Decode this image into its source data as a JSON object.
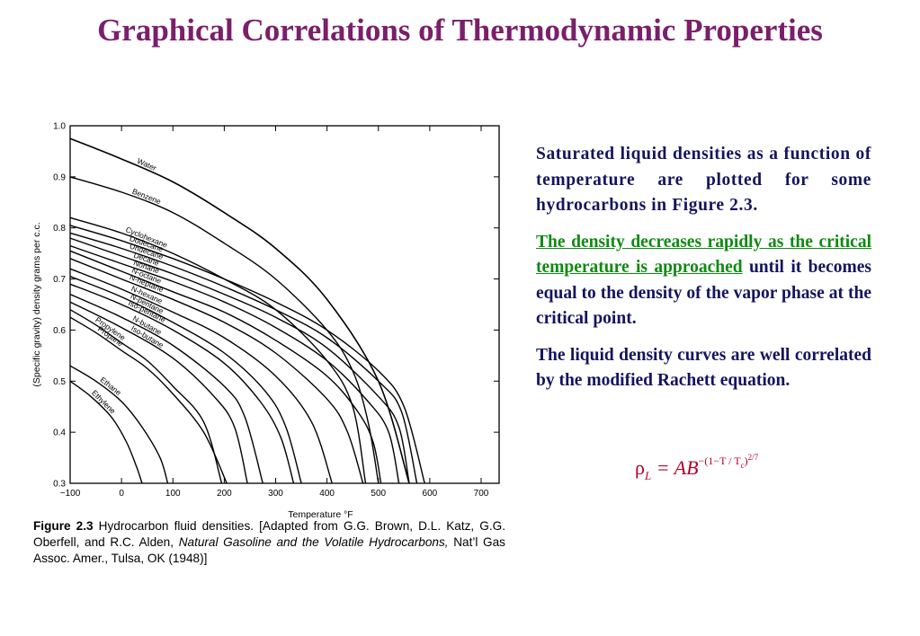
{
  "slide": {
    "title": "Graphical Correlations of Thermodynamic Properties"
  },
  "text_panel": {
    "para1": "Saturated liquid densities as a function of temperature are plotted for some hydrocarbons in Figure 2.3.",
    "para2_green": "The density decreases rapidly as the critical temperature is approached",
    "para2_rest": " until it becomes equal to the density of the vapor phase at the critical point.",
    "para3": "The liquid density curves are well correlated by the modified Rachett equation."
  },
  "formula": {
    "rho": "ρ",
    "rho_sub": "L",
    "equals": " = AB",
    "exp_open": "−(1−T / T",
    "exp_sub": "c",
    "exp_close": ")",
    "exp_power": "2/7"
  },
  "caption": {
    "figure_label": "Figure 2.3",
    "text_before_italic": "  Hydrocarbon fluid densities. [Adapted from G.G. Brown, D.L. Katz, G.G. Oberfell, and R.C. Alden, ",
    "italic_text": "Natural Gasoline and the Volatile Hydrocarbons,",
    "text_after_italic": " Nat’l Gas Assoc. Amer., Tulsa, OK (1948)]"
  },
  "chart_data": {
    "type": "line",
    "xlabel": "Temperature °F",
    "ylabel": "(Specific gravity) density grams per c.c.",
    "xlim": [
      -100,
      735
    ],
    "ylim": [
      0.3,
      1.0
    ],
    "x_ticks": [
      -100,
      0,
      100,
      200,
      300,
      400,
      500,
      600,
      700
    ],
    "x_tick_labels": [
      "−100",
      "0",
      "100",
      "200",
      "300",
      "400",
      "500",
      "600",
      "700"
    ],
    "y_ticks": [
      0.3,
      0.4,
      0.5,
      0.6,
      0.7,
      0.8,
      0.9,
      1.0
    ],
    "y_tick_labels": [
      "0.3",
      "0.4",
      "0.5",
      "0.6",
      "0.7",
      "0.8",
      "0.9",
      "1.0"
    ],
    "grid": false,
    "series": [
      {
        "name": "Water",
        "x": [
          -100,
          0,
          100,
          200,
          300,
          400,
          500,
          560
        ],
        "y": [
          0.975,
          0.935,
          0.89,
          0.83,
          0.76,
          0.66,
          0.5,
          0.3
        ]
      },
      {
        "name": "Benzene",
        "x": [
          -100,
          0,
          100,
          200,
          300,
          400,
          450,
          480,
          500
        ],
        "y": [
          0.9,
          0.87,
          0.83,
          0.77,
          0.7,
          0.6,
          0.52,
          0.42,
          0.3
        ]
      },
      {
        "name": "Cyclohexane",
        "x": [
          -100,
          0,
          100,
          200,
          300,
          400,
          450,
          475
        ],
        "y": [
          0.82,
          0.79,
          0.75,
          0.7,
          0.64,
          0.54,
          0.45,
          0.3
        ]
      },
      {
        "name": "Dodecane",
        "x": [
          -100,
          0,
          100,
          200,
          300,
          400,
          500,
          550,
          590
        ],
        "y": [
          0.805,
          0.775,
          0.74,
          0.7,
          0.655,
          0.6,
          0.52,
          0.45,
          0.3
        ]
      },
      {
        "name": "Undecane",
        "x": [
          -100,
          0,
          100,
          200,
          300,
          400,
          500,
          545,
          575
        ],
        "y": [
          0.79,
          0.76,
          0.725,
          0.685,
          0.64,
          0.585,
          0.5,
          0.44,
          0.3
        ]
      },
      {
        "name": "Decane",
        "x": [
          -100,
          0,
          100,
          200,
          300,
          400,
          500,
          540,
          560
        ],
        "y": [
          0.78,
          0.745,
          0.71,
          0.67,
          0.625,
          0.565,
          0.47,
          0.41,
          0.3
        ]
      },
      {
        "name": "Nonane",
        "x": [
          -100,
          0,
          100,
          200,
          300,
          400,
          480,
          520,
          540
        ],
        "y": [
          0.765,
          0.73,
          0.695,
          0.655,
          0.605,
          0.54,
          0.46,
          0.4,
          0.3
        ]
      },
      {
        "name": "N-octane",
        "x": [
          -100,
          0,
          100,
          200,
          300,
          400,
          460,
          490,
          505
        ],
        "y": [
          0.755,
          0.715,
          0.675,
          0.635,
          0.58,
          0.51,
          0.44,
          0.38,
          0.3
        ]
      },
      {
        "name": "N-heptane",
        "x": [
          -100,
          0,
          100,
          200,
          300,
          400,
          440,
          470
        ],
        "y": [
          0.74,
          0.7,
          0.66,
          0.615,
          0.555,
          0.465,
          0.4,
          0.3
        ]
      },
      {
        "name": "N-hexane",
        "x": [
          -100,
          0,
          100,
          200,
          300,
          370,
          410
        ],
        "y": [
          0.72,
          0.68,
          0.635,
          0.585,
          0.51,
          0.42,
          0.3
        ]
      },
      {
        "name": "N-pentane",
        "x": [
          -100,
          0,
          100,
          200,
          280,
          320,
          350
        ],
        "y": [
          0.705,
          0.665,
          0.615,
          0.555,
          0.48,
          0.41,
          0.3
        ]
      },
      {
        "name": "Iso-pentane",
        "x": [
          -100,
          0,
          100,
          200,
          270,
          310,
          335
        ],
        "y": [
          0.69,
          0.65,
          0.6,
          0.535,
          0.46,
          0.39,
          0.3
        ]
      },
      {
        "name": "N-butane",
        "x": [
          -100,
          0,
          100,
          200,
          240,
          275
        ],
        "y": [
          0.67,
          0.625,
          0.57,
          0.49,
          0.43,
          0.3
        ]
      },
      {
        "name": "Iso-butane",
        "x": [
          -100,
          0,
          100,
          180,
          220,
          245
        ],
        "y": [
          0.655,
          0.605,
          0.545,
          0.47,
          0.41,
          0.3
        ]
      },
      {
        "name": "Propylene",
        "x": [
          -100,
          -50,
          0,
          50,
          100,
          160,
          195
        ],
        "y": [
          0.64,
          0.61,
          0.575,
          0.54,
          0.49,
          0.42,
          0.3
        ]
      },
      {
        "name": "Propane",
        "x": [
          -100,
          -50,
          0,
          50,
          100,
          160,
          205
        ],
        "y": [
          0.625,
          0.595,
          0.56,
          0.525,
          0.475,
          0.4,
          0.3
        ]
      },
      {
        "name": "Ethane",
        "x": [
          -100,
          -50,
          0,
          40,
          75,
          90
        ],
        "y": [
          0.53,
          0.5,
          0.46,
          0.41,
          0.35,
          0.3
        ]
      },
      {
        "name": "Ethylene",
        "x": [
          -100,
          -60,
          -20,
          10,
          30,
          40
        ],
        "y": [
          0.5,
          0.47,
          0.43,
          0.38,
          0.33,
          0.3
        ]
      }
    ]
  }
}
